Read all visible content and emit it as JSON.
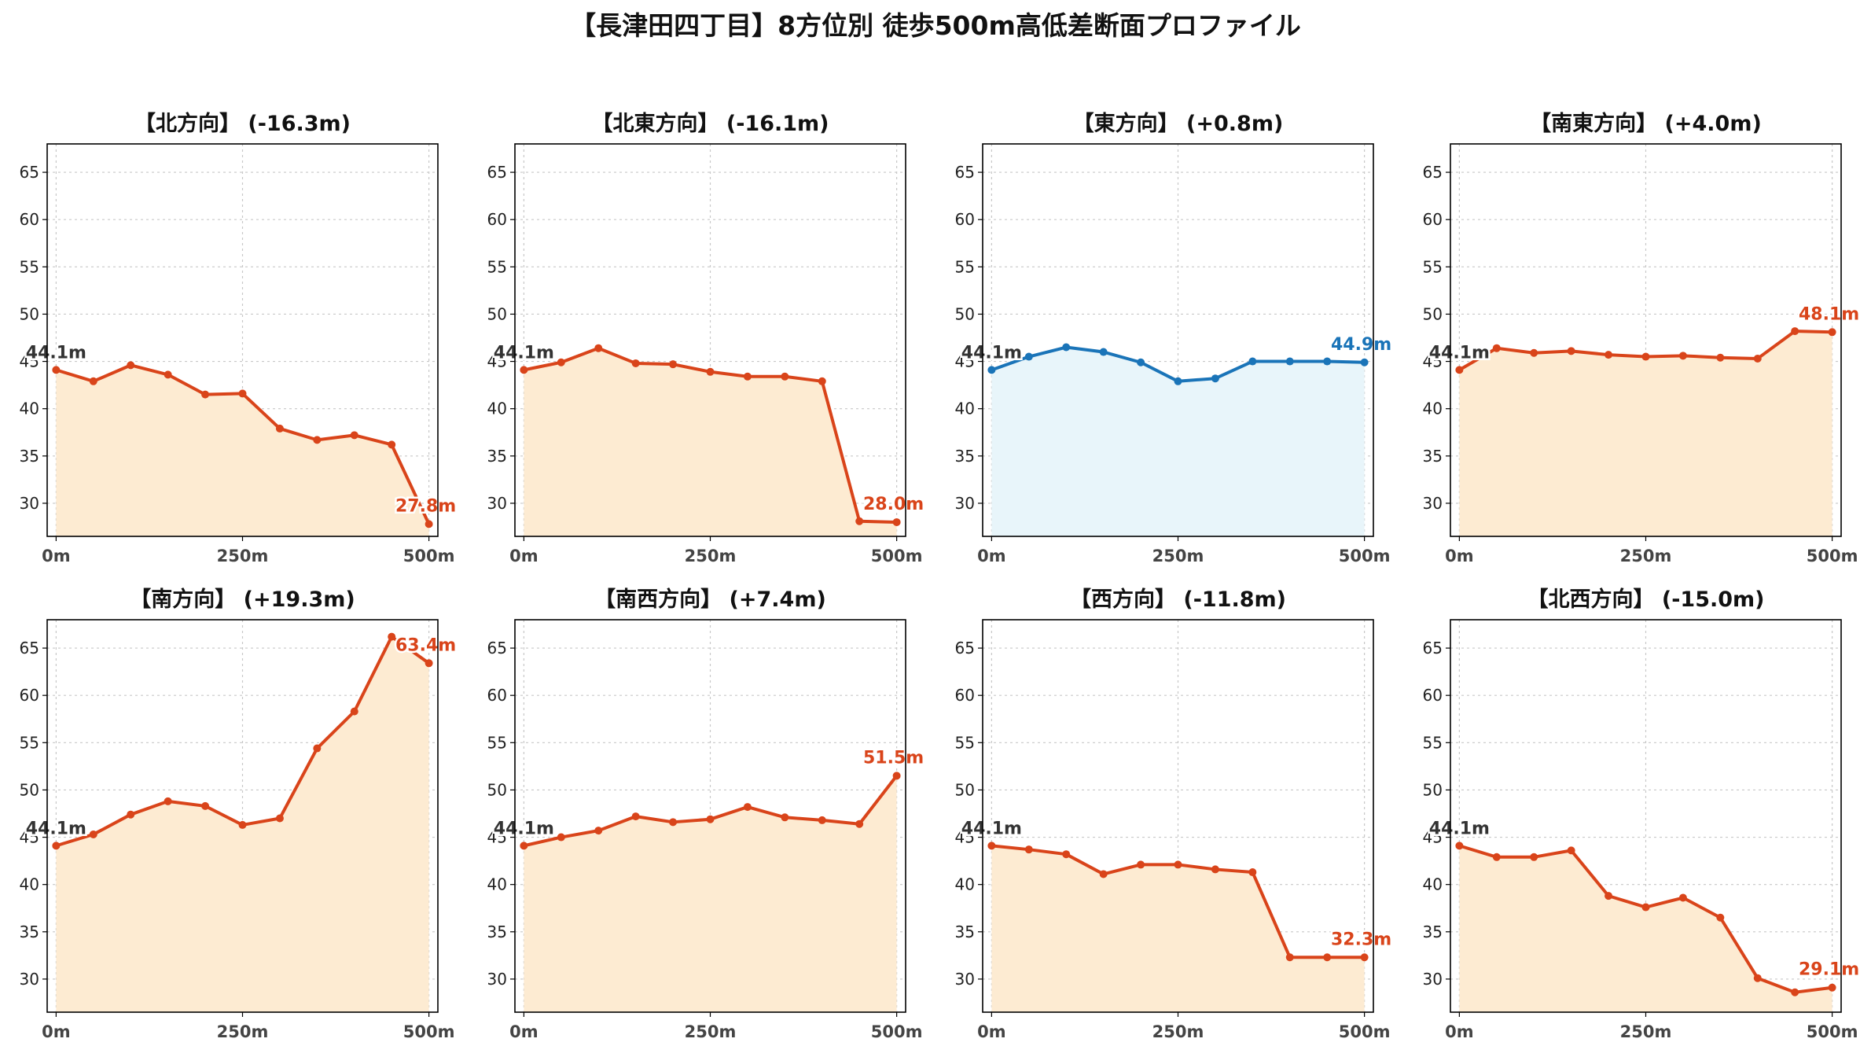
{
  "figure": {
    "title": "【長津田四丁目】8方位別 徒歩500m高低差断面プロファイル"
  },
  "colors": {
    "decline_line": "#d9441a",
    "decline_fill": "#fdebd2",
    "flat_line": "#1a74b8",
    "flat_fill": "#e8f5fa",
    "start_label": "#333333",
    "grid": "#c8c8c8",
    "axis": "#000000"
  },
  "chart_data": [
    {
      "type": "area",
      "title": "【北方向】 (-16.3m)",
      "x": [
        0,
        50,
        100,
        150,
        200,
        250,
        300,
        350,
        400,
        450,
        500
      ],
      "values": [
        44.1,
        42.9,
        44.6,
        43.6,
        41.5,
        41.6,
        37.9,
        36.7,
        37.2,
        36.2,
        27.8
      ],
      "xticks": [
        "0m",
        "250m",
        "500m"
      ],
      "yticks": [
        30,
        35,
        40,
        45,
        50,
        55,
        60,
        65
      ],
      "xlim": [
        -12,
        512
      ],
      "ylim": [
        26.5,
        68
      ],
      "start_label": "44.1m",
      "end_label": "27.8m",
      "style": "decline",
      "grid": true
    },
    {
      "type": "area",
      "title": "【北東方向】 (-16.1m)",
      "x": [
        0,
        50,
        100,
        150,
        200,
        250,
        300,
        350,
        400,
        450,
        500
      ],
      "values": [
        44.1,
        44.9,
        46.4,
        44.8,
        44.7,
        43.9,
        43.4,
        43.4,
        42.9,
        28.1,
        28.0
      ],
      "xticks": [
        "0m",
        "250m",
        "500m"
      ],
      "yticks": [
        30,
        35,
        40,
        45,
        50,
        55,
        60,
        65
      ],
      "xlim": [
        -12,
        512
      ],
      "ylim": [
        26.5,
        68
      ],
      "start_label": "44.1m",
      "end_label": "28.0m",
      "style": "decline",
      "grid": true
    },
    {
      "type": "area",
      "title": "【東方向】 (+0.8m)",
      "x": [
        0,
        50,
        100,
        150,
        200,
        250,
        300,
        350,
        400,
        450,
        500
      ],
      "values": [
        44.1,
        45.5,
        46.5,
        46.0,
        44.9,
        42.9,
        43.2,
        45.0,
        45.0,
        45.0,
        44.9
      ],
      "xticks": [
        "0m",
        "250m",
        "500m"
      ],
      "yticks": [
        30,
        35,
        40,
        45,
        50,
        55,
        60,
        65
      ],
      "xlim": [
        -12,
        512
      ],
      "ylim": [
        26.5,
        68
      ],
      "start_label": "44.1m",
      "end_label": "44.9m",
      "style": "flat",
      "grid": true
    },
    {
      "type": "area",
      "title": "【南東方向】 (+4.0m)",
      "x": [
        0,
        50,
        100,
        150,
        200,
        250,
        300,
        350,
        400,
        450,
        500
      ],
      "values": [
        44.1,
        46.4,
        45.9,
        46.1,
        45.7,
        45.5,
        45.6,
        45.4,
        45.3,
        48.2,
        48.1
      ],
      "xticks": [
        "0m",
        "250m",
        "500m"
      ],
      "yticks": [
        30,
        35,
        40,
        45,
        50,
        55,
        60,
        65
      ],
      "xlim": [
        -12,
        512
      ],
      "ylim": [
        26.5,
        68
      ],
      "start_label": "44.1m",
      "end_label": "48.1m",
      "style": "decline",
      "grid": true
    },
    {
      "type": "area",
      "title": "【南方向】 (+19.3m)",
      "x": [
        0,
        50,
        100,
        150,
        200,
        250,
        300,
        350,
        400,
        450,
        500
      ],
      "values": [
        44.1,
        45.3,
        47.4,
        48.8,
        48.3,
        46.3,
        47.0,
        54.4,
        58.3,
        66.2,
        63.4
      ],
      "xticks": [
        "0m",
        "250m",
        "500m"
      ],
      "yticks": [
        30,
        35,
        40,
        45,
        50,
        55,
        60,
        65
      ],
      "xlim": [
        -12,
        512
      ],
      "ylim": [
        26.5,
        68
      ],
      "start_label": "44.1m",
      "end_label": "63.4m",
      "style": "decline",
      "grid": true
    },
    {
      "type": "area",
      "title": "【南西方向】 (+7.4m)",
      "x": [
        0,
        50,
        100,
        150,
        200,
        250,
        300,
        350,
        400,
        450,
        500
      ],
      "values": [
        44.1,
        45.0,
        45.7,
        47.2,
        46.6,
        46.9,
        48.2,
        47.1,
        46.8,
        46.4,
        51.5
      ],
      "xticks": [
        "0m",
        "250m",
        "500m"
      ],
      "yticks": [
        30,
        35,
        40,
        45,
        50,
        55,
        60,
        65
      ],
      "xlim": [
        -12,
        512
      ],
      "ylim": [
        26.5,
        68
      ],
      "start_label": "44.1m",
      "end_label": "51.5m",
      "style": "decline",
      "grid": true
    },
    {
      "type": "area",
      "title": "【西方向】 (-11.8m)",
      "x": [
        0,
        50,
        100,
        150,
        200,
        250,
        300,
        350,
        400,
        450,
        500
      ],
      "values": [
        44.1,
        43.7,
        43.2,
        41.1,
        42.1,
        42.1,
        41.6,
        41.3,
        32.3,
        32.3,
        32.3
      ],
      "xticks": [
        "0m",
        "250m",
        "500m"
      ],
      "yticks": [
        30,
        35,
        40,
        45,
        50,
        55,
        60,
        65
      ],
      "xlim": [
        -12,
        512
      ],
      "ylim": [
        26.5,
        68
      ],
      "start_label": "44.1m",
      "end_label": "32.3m",
      "style": "decline",
      "grid": true
    },
    {
      "type": "area",
      "title": "【北西方向】 (-15.0m)",
      "x": [
        0,
        50,
        100,
        150,
        200,
        250,
        300,
        350,
        400,
        450,
        500
      ],
      "values": [
        44.1,
        42.9,
        42.9,
        43.6,
        38.8,
        37.6,
        38.6,
        36.5,
        30.1,
        28.6,
        29.1
      ],
      "xticks": [
        "0m",
        "250m",
        "500m"
      ],
      "yticks": [
        30,
        35,
        40,
        45,
        50,
        55,
        60,
        65
      ],
      "xlim": [
        -12,
        512
      ],
      "ylim": [
        26.5,
        68
      ],
      "start_label": "44.1m",
      "end_label": "29.1m",
      "style": "decline",
      "grid": true
    }
  ]
}
